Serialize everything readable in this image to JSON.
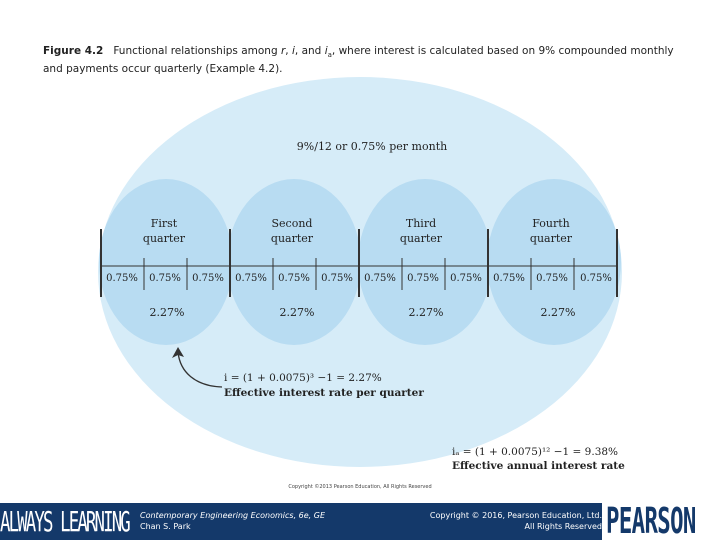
{
  "caption": {
    "figure_label": "Figure 4.2",
    "text_pre": "Functional relationships among ",
    "r": "r",
    "sep1": ", ",
    "i": "i",
    "sep2": ", and ",
    "ia": "i",
    "ia_sub": "a",
    "text_post": ", where interest is calculated based on 9% compounded monthly and payments occur quarterly (Example 4.2)."
  },
  "diagram": {
    "monthly_rate_label": "9%/12 or 0.75% per month",
    "quarters": [
      {
        "line1": "First",
        "line2": "quarter",
        "rate": "2.27%"
      },
      {
        "line1": "Second",
        "line2": "quarter",
        "rate": "2.27%"
      },
      {
        "line1": "Third",
        "line2": "quarter",
        "rate": "2.27%"
      },
      {
        "line1": "Fourth",
        "line2": "quarter",
        "rate": "2.27%"
      }
    ],
    "monthly_rates": [
      "0.75%",
      "0.75%",
      "0.75%",
      "0.75%",
      "0.75%",
      "0.75%",
      "0.75%",
      "0.75%",
      "0.75%",
      "0.75%",
      "0.75%",
      "0.75%"
    ],
    "quarter_formula": "i = (1 + 0.0075)³ −1 = 2.27%",
    "quarter_formula_caption": "Effective interest rate per quarter",
    "annual_formula": "iₐ = (1 + 0.0075)¹² −1 = 9.38%",
    "annual_formula_caption": "Effective annual interest rate",
    "copyright_small": "Copyright ©2013 Pearson Education, All Rights Reserved",
    "colors": {
      "outer": "#d6ecf8",
      "inner": "#b8dcf2",
      "line": "#333333"
    }
  },
  "footer": {
    "slogan": "ALWAYS LEARNING",
    "book_title": "Contemporary Engineering Economics, 6e, GE",
    "author": "Chan S. Park",
    "copyright_line1": "Copyright © 2016, Pearson Education, Ltd.",
    "copyright_line2": "All Rights Reserved",
    "brand": "PEARSON"
  }
}
